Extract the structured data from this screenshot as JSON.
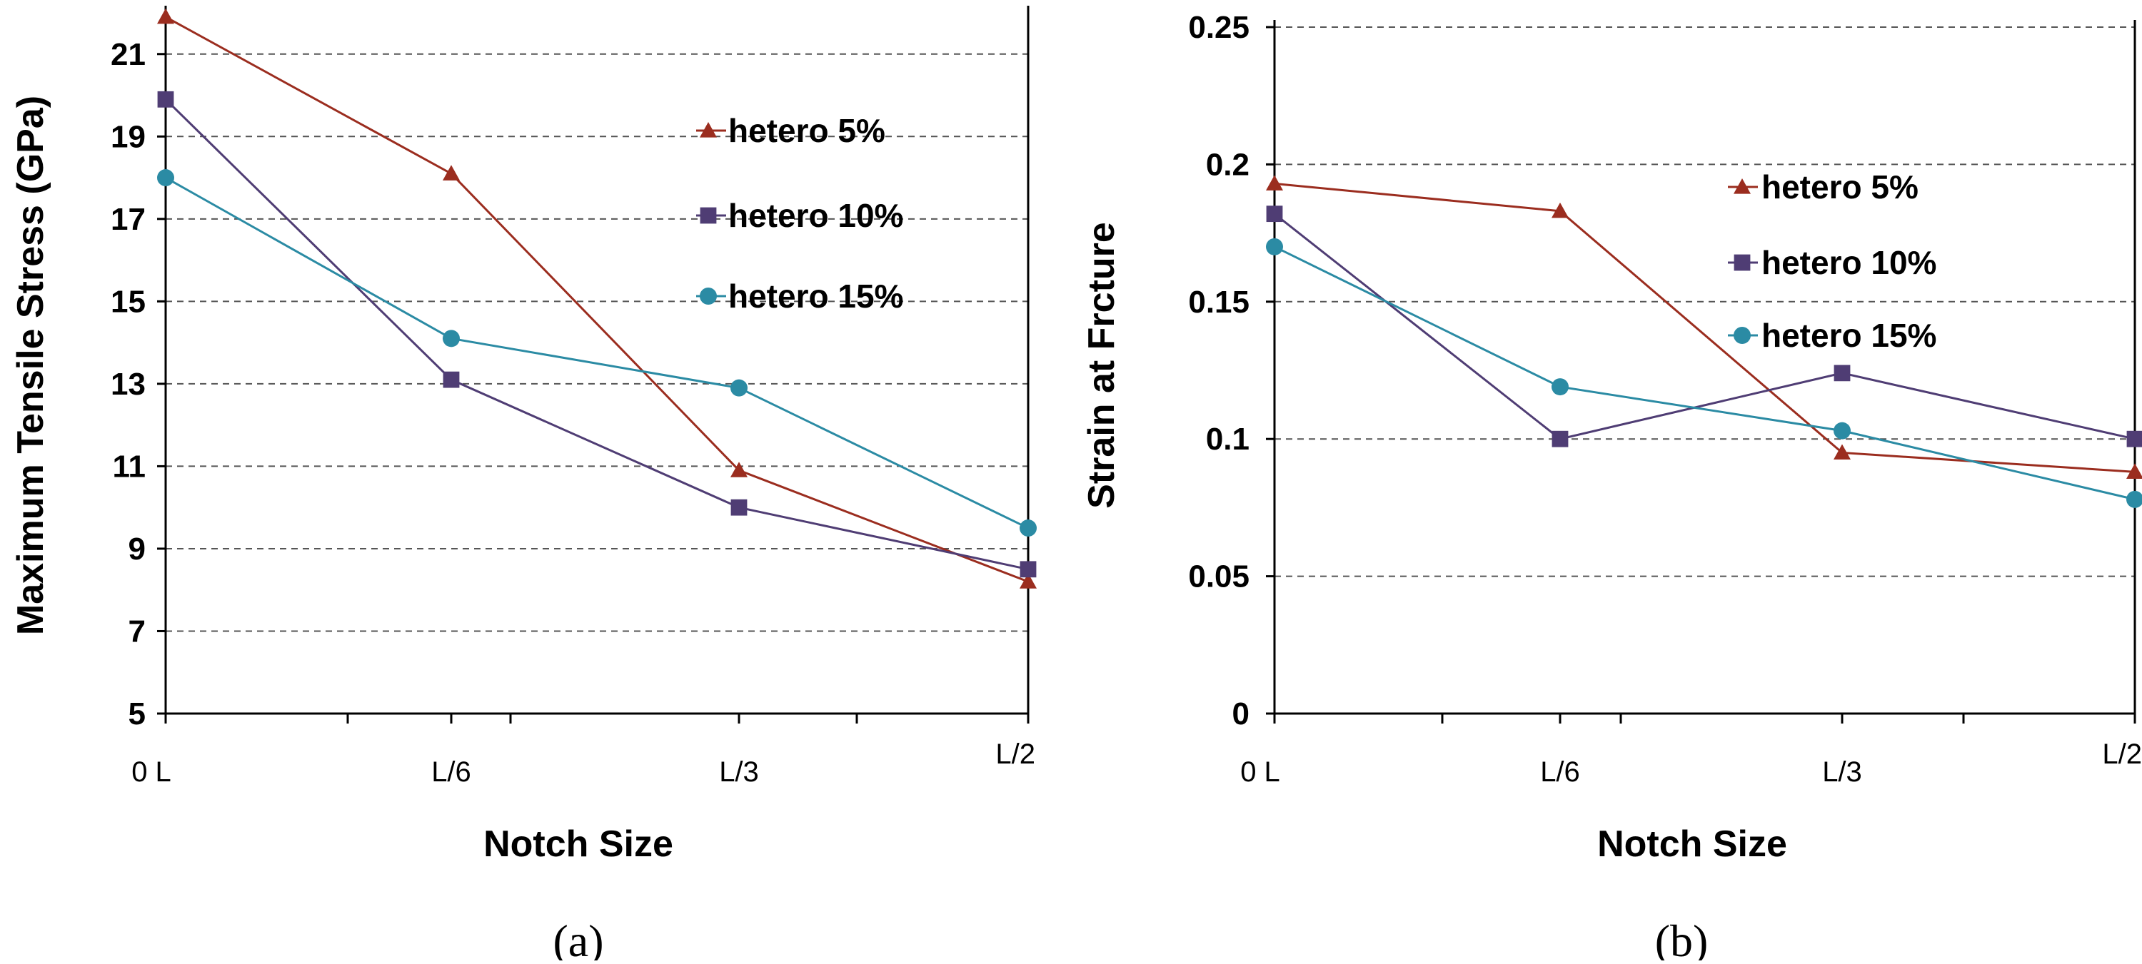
{
  "chart_data": [
    {
      "type": "line",
      "caption": "(a)",
      "categories": [
        "0 L",
        "L/6",
        "L/3",
        "L/2"
      ],
      "xlabel": "Notch Size",
      "ylabel": "Maximum Tensile Stress (GPa)",
      "ylim": [
        5,
        22
      ],
      "yticks": [
        "5",
        "7",
        "9",
        "11",
        "13",
        "15",
        "17",
        "19",
        "21"
      ],
      "ytick_values": [
        5,
        7,
        9,
        11,
        13,
        15,
        17,
        19,
        21
      ],
      "grid": true,
      "legend_position": "top-right",
      "series": [
        {
          "name": "hetero 5%",
          "values": [
            21.9,
            18.1,
            10.9,
            8.2
          ],
          "color": "#9b2d1f",
          "marker": "triangle"
        },
        {
          "name": "hetero 10%",
          "values": [
            19.9,
            13.1,
            10.0,
            8.5
          ],
          "color": "#4f3d74",
          "marker": "square"
        },
        {
          "name": "hetero 15%",
          "values": [
            18.0,
            14.1,
            12.9,
            9.5
          ],
          "color": "#2b8ba4",
          "marker": "circle"
        }
      ]
    },
    {
      "type": "line",
      "caption": "(b)",
      "categories": [
        "0 L",
        "L/6",
        "L/3",
        "L/2"
      ],
      "xlabel": "Notch Size",
      "ylabel": "Strain at  Frcture",
      "ylim": [
        0,
        0.25
      ],
      "yticks": [
        "0",
        "0.05",
        "0.1",
        "0.15",
        "0.2",
        "0.25"
      ],
      "ytick_values": [
        0,
        0.05,
        0.1,
        0.15,
        0.2,
        0.25
      ],
      "grid": true,
      "legend_position": "top-right",
      "series": [
        {
          "name": "hetero 5%",
          "values": [
            0.193,
            0.183,
            0.095,
            0.088
          ],
          "color": "#9b2d1f",
          "marker": "triangle"
        },
        {
          "name": "hetero 10%",
          "values": [
            0.182,
            0.1,
            0.124,
            0.1
          ],
          "color": "#4f3d74",
          "marker": "square"
        },
        {
          "name": "hetero 15%",
          "values": [
            0.17,
            0.119,
            0.103,
            0.078
          ],
          "color": "#2b8ba4",
          "marker": "circle"
        }
      ]
    }
  ]
}
